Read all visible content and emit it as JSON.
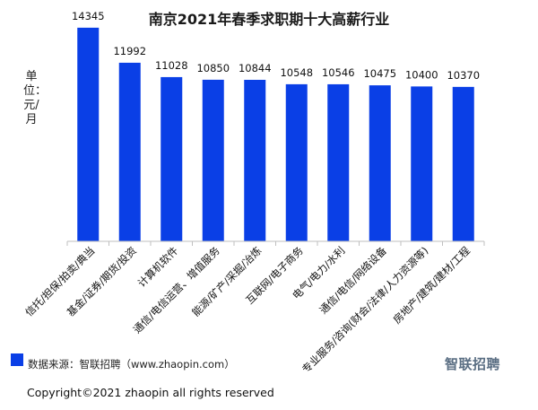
{
  "chart_data": {
    "type": "bar",
    "title": "南京2021年春季求职期十大高薪行业",
    "ylabel": "单位：元/月",
    "xlabel": "",
    "ylim": [
      0,
      15000
    ],
    "categories": [
      "信托/担保/拍卖/典当",
      "基金/证券/期货/投资",
      "计算机软件",
      "通信/电信运营、增值服务",
      "能源/矿产/采掘/冶炼",
      "互联网/电子商务",
      "电气/电力/水利",
      "通信/电信/网络设备",
      "专业服务/咨询(财会/法律/人力资源等)",
      "房地产/建筑/建材/工程"
    ],
    "values": [
      14345,
      11992,
      11028,
      10850,
      10844,
      10548,
      10546,
      10475,
      10400,
      10370
    ],
    "value_labels": [
      "14345",
      "11992",
      "11028",
      "10850",
      "10844",
      "10548",
      "10546",
      "10475",
      "10400",
      "10370"
    ],
    "grid": false,
    "bar_color": "#0a3fe6"
  },
  "footer": {
    "source": "数据来源：智联招聘（www.zhaopin.com）",
    "copyright": "Copyright©2021 zhaopin all rights reserved",
    "logo": "智联招聘"
  }
}
